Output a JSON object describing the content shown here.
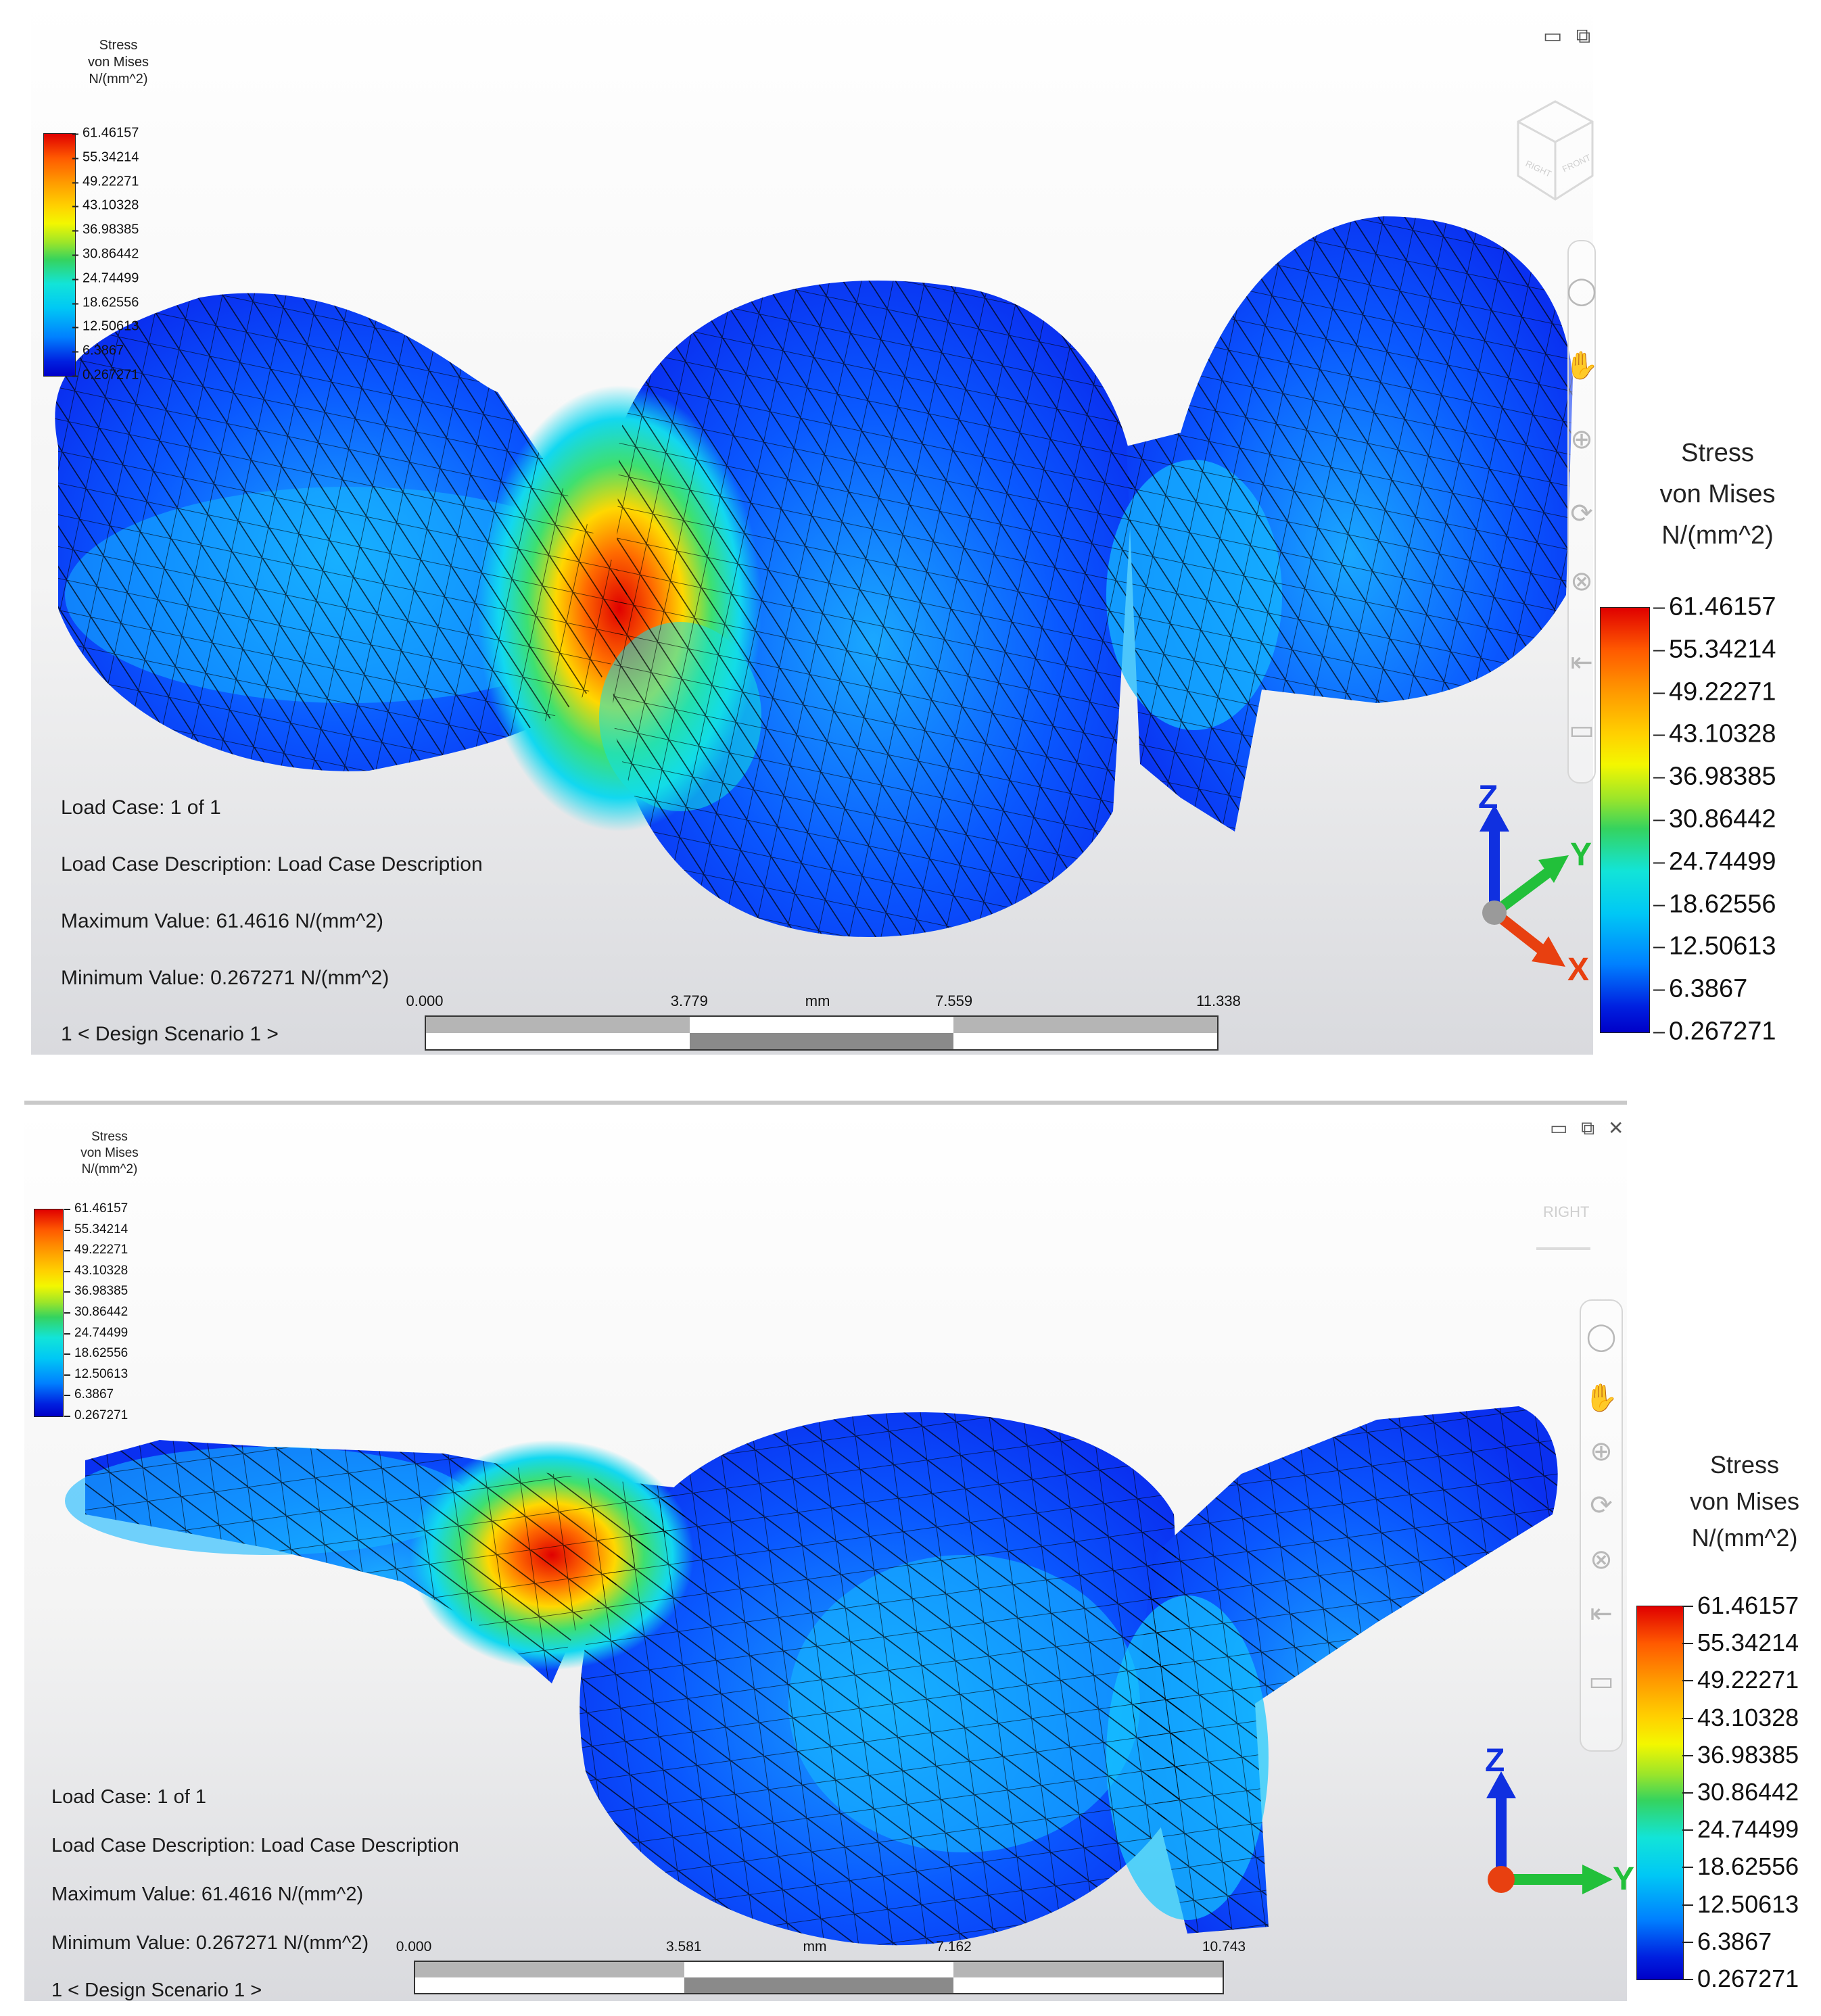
{
  "panels": [
    {
      "legend_small": {
        "title": [
          "Stress",
          "von Mises",
          "N/(mm^2)"
        ],
        "values": [
          "61.46157",
          "55.34214",
          "49.22271",
          "43.10328",
          "36.98385",
          "30.86442",
          "24.74499",
          "18.62556",
          "12.50613",
          "6.3867",
          "0.267271"
        ]
      },
      "legend_large": {
        "title": [
          "Stress",
          "von Mises",
          "N/(mm^2)"
        ],
        "values": [
          "61.46157",
          "55.34214",
          "49.22271",
          "43.10328",
          "36.98385",
          "30.86442",
          "24.74499",
          "18.62556",
          "12.50613",
          "6.3867",
          "0.267271"
        ]
      },
      "info": {
        "load_case": "Load Case:  1 of 1",
        "description": "Load Case Description:  Load Case Description",
        "maximum": "Maximum Value: 61.4616 N/(mm^2)",
        "minimum": "Minimum Value: 0.267271 N/(mm^2)",
        "scenario": "1 < Design Scenario 1 >"
      },
      "scale": {
        "ticks": [
          "0.000",
          "3.779",
          "7.559",
          "11.338"
        ],
        "unit": "mm"
      },
      "axes": {
        "z": "Z",
        "y": "Y",
        "x": "X"
      },
      "view_cube": [
        "RIGHT",
        "FRONT"
      ],
      "window_controls": [
        "▭",
        "⧉"
      ]
    },
    {
      "legend_small": {
        "title": [
          "Stress",
          "von Mises",
          "N/(mm^2)"
        ],
        "values": [
          "61.46157",
          "55.34214",
          "49.22271",
          "43.10328",
          "36.98385",
          "30.86442",
          "24.74499",
          "18.62556",
          "12.50613",
          "6.3867",
          "0.267271"
        ]
      },
      "legend_large": {
        "title": [
          "Stress",
          "von Mises",
          "N/(mm^2)"
        ],
        "values": [
          "61.46157",
          "55.34214",
          "49.22271",
          "43.10328",
          "36.98385",
          "30.86442",
          "24.74499",
          "18.62556",
          "12.50613",
          "6.3867",
          "0.267271"
        ]
      },
      "info": {
        "load_case": "Load Case:  1 of 1",
        "description": "Load Case Description:  Load Case Description",
        "maximum": "Maximum Value: 61.4616 N/(mm^2)",
        "minimum": "Minimum Value: 0.267271 N/(mm^2)",
        "scenario": "1 < Design Scenario 1 >"
      },
      "scale": {
        "ticks": [
          "0.000",
          "3.581",
          "7.162",
          "10.743"
        ],
        "unit": "mm"
      },
      "axes": {
        "z": "Z",
        "y": "Y"
      },
      "view_cube": [
        "RIGHT"
      ],
      "window_controls": [
        "▭",
        "⧉",
        "✕"
      ]
    }
  ],
  "colors": {
    "max_red": "#e00000",
    "min_blue": "#0000c8",
    "mesh_blue": "#0a3cff",
    "axis_z": "#1030e0",
    "axis_y": "#22c03a",
    "axis_x": "#e84010"
  }
}
